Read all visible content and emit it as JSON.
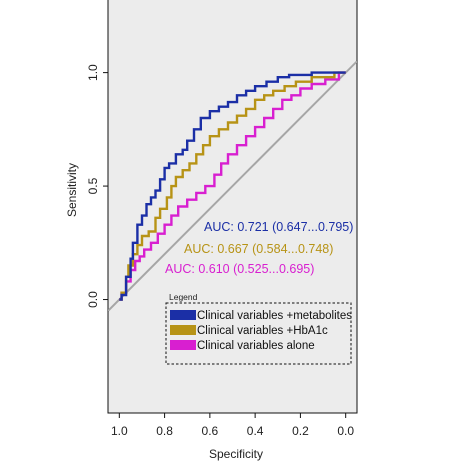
{
  "chart_data": {
    "type": "line",
    "title": "",
    "xlabel": "Specificity",
    "ylabel": "Sensitivity",
    "x_reversed": true,
    "xlim": [
      1.05,
      -0.05
    ],
    "ylim": [
      -0.5,
      1.32
    ],
    "x_ticks": [
      "1.0",
      "0.8",
      "0.6",
      "0.4",
      "0.2",
      "0.0"
    ],
    "x_tick_values": [
      1.0,
      0.8,
      0.6,
      0.4,
      0.2,
      0.0
    ],
    "y_ticks": [
      "0.0",
      "0.5",
      "1.0"
    ],
    "y_tick_values": [
      0.0,
      0.5,
      1.0
    ],
    "background": "#ececec",
    "reference_line": {
      "from": [
        1.05,
        -0.05
      ],
      "to": [
        -0.05,
        1.05
      ],
      "color": "#a6a6a6"
    },
    "legend": {
      "title": "Legend",
      "position": "bottom-right"
    },
    "series": [
      {
        "name": "Clinical variables +metabolites",
        "color": "#1b2fa6",
        "auc_label": "AUC:  0.721  (0.647...0.795)",
        "points": [
          [
            1.0,
            0.0
          ],
          [
            0.99,
            0.0
          ],
          [
            0.99,
            0.02
          ],
          [
            0.97,
            0.02
          ],
          [
            0.97,
            0.1
          ],
          [
            0.95,
            0.1
          ],
          [
            0.95,
            0.18
          ],
          [
            0.94,
            0.18
          ],
          [
            0.94,
            0.25
          ],
          [
            0.92,
            0.25
          ],
          [
            0.92,
            0.33
          ],
          [
            0.9,
            0.33
          ],
          [
            0.9,
            0.37
          ],
          [
            0.88,
            0.37
          ],
          [
            0.88,
            0.42
          ],
          [
            0.86,
            0.42
          ],
          [
            0.86,
            0.45
          ],
          [
            0.84,
            0.45
          ],
          [
            0.84,
            0.48
          ],
          [
            0.82,
            0.48
          ],
          [
            0.82,
            0.53
          ],
          [
            0.8,
            0.53
          ],
          [
            0.8,
            0.58
          ],
          [
            0.78,
            0.58
          ],
          [
            0.78,
            0.6
          ],
          [
            0.75,
            0.6
          ],
          [
            0.75,
            0.64
          ],
          [
            0.72,
            0.64
          ],
          [
            0.72,
            0.66
          ],
          [
            0.7,
            0.66
          ],
          [
            0.7,
            0.7
          ],
          [
            0.67,
            0.7
          ],
          [
            0.67,
            0.75
          ],
          [
            0.64,
            0.75
          ],
          [
            0.64,
            0.8
          ],
          [
            0.6,
            0.8
          ],
          [
            0.6,
            0.83
          ],
          [
            0.56,
            0.83
          ],
          [
            0.56,
            0.85
          ],
          [
            0.52,
            0.85
          ],
          [
            0.52,
            0.87
          ],
          [
            0.48,
            0.87
          ],
          [
            0.48,
            0.9
          ],
          [
            0.44,
            0.9
          ],
          [
            0.44,
            0.92
          ],
          [
            0.4,
            0.92
          ],
          [
            0.4,
            0.94
          ],
          [
            0.35,
            0.94
          ],
          [
            0.35,
            0.96
          ],
          [
            0.3,
            0.96
          ],
          [
            0.3,
            0.98
          ],
          [
            0.25,
            0.98
          ],
          [
            0.25,
            0.99
          ],
          [
            0.15,
            0.99
          ],
          [
            0.15,
            1.0
          ],
          [
            0.0,
            1.0
          ]
        ]
      },
      {
        "name": "Clinical variables +HbA1c",
        "color": "#b79316",
        "auc_label": "AUC:  0.667  (0.584...0.748)",
        "points": [
          [
            1.0,
            0.0
          ],
          [
            0.99,
            0.0
          ],
          [
            0.99,
            0.03
          ],
          [
            0.97,
            0.03
          ],
          [
            0.97,
            0.1
          ],
          [
            0.96,
            0.1
          ],
          [
            0.96,
            0.15
          ],
          [
            0.94,
            0.15
          ],
          [
            0.94,
            0.2
          ],
          [
            0.92,
            0.2
          ],
          [
            0.92,
            0.24
          ],
          [
            0.9,
            0.24
          ],
          [
            0.9,
            0.28
          ],
          [
            0.87,
            0.28
          ],
          [
            0.87,
            0.3
          ],
          [
            0.84,
            0.3
          ],
          [
            0.84,
            0.36
          ],
          [
            0.82,
            0.36
          ],
          [
            0.82,
            0.4
          ],
          [
            0.79,
            0.4
          ],
          [
            0.79,
            0.45
          ],
          [
            0.77,
            0.45
          ],
          [
            0.77,
            0.5
          ],
          [
            0.75,
            0.5
          ],
          [
            0.75,
            0.54
          ],
          [
            0.72,
            0.54
          ],
          [
            0.72,
            0.57
          ],
          [
            0.69,
            0.57
          ],
          [
            0.69,
            0.6
          ],
          [
            0.66,
            0.6
          ],
          [
            0.66,
            0.64
          ],
          [
            0.63,
            0.64
          ],
          [
            0.63,
            0.68
          ],
          [
            0.6,
            0.68
          ],
          [
            0.6,
            0.72
          ],
          [
            0.56,
            0.72
          ],
          [
            0.56,
            0.75
          ],
          [
            0.52,
            0.75
          ],
          [
            0.52,
            0.78
          ],
          [
            0.48,
            0.78
          ],
          [
            0.48,
            0.81
          ],
          [
            0.44,
            0.81
          ],
          [
            0.44,
            0.84
          ],
          [
            0.4,
            0.84
          ],
          [
            0.4,
            0.88
          ],
          [
            0.36,
            0.88
          ],
          [
            0.36,
            0.9
          ],
          [
            0.32,
            0.9
          ],
          [
            0.32,
            0.92
          ],
          [
            0.27,
            0.92
          ],
          [
            0.27,
            0.94
          ],
          [
            0.22,
            0.94
          ],
          [
            0.22,
            0.96
          ],
          [
            0.15,
            0.96
          ],
          [
            0.15,
            0.98
          ],
          [
            0.05,
            0.98
          ],
          [
            0.05,
            1.0
          ],
          [
            0.0,
            1.0
          ]
        ]
      },
      {
        "name": "Clinical variables alone",
        "color": "#d81fd0",
        "auc_label": "AUC:  0.610  (0.525...0.695)",
        "points": [
          [
            1.0,
            0.0
          ],
          [
            0.99,
            0.0
          ],
          [
            0.99,
            0.03
          ],
          [
            0.97,
            0.03
          ],
          [
            0.97,
            0.08
          ],
          [
            0.95,
            0.08
          ],
          [
            0.95,
            0.13
          ],
          [
            0.93,
            0.13
          ],
          [
            0.93,
            0.17
          ],
          [
            0.91,
            0.17
          ],
          [
            0.91,
            0.19
          ],
          [
            0.89,
            0.19
          ],
          [
            0.89,
            0.22
          ],
          [
            0.86,
            0.22
          ],
          [
            0.86,
            0.25
          ],
          [
            0.83,
            0.25
          ],
          [
            0.83,
            0.29
          ],
          [
            0.8,
            0.29
          ],
          [
            0.8,
            0.33
          ],
          [
            0.77,
            0.33
          ],
          [
            0.77,
            0.37
          ],
          [
            0.74,
            0.37
          ],
          [
            0.74,
            0.41
          ],
          [
            0.7,
            0.41
          ],
          [
            0.7,
            0.44
          ],
          [
            0.66,
            0.44
          ],
          [
            0.66,
            0.47
          ],
          [
            0.62,
            0.47
          ],
          [
            0.62,
            0.5
          ],
          [
            0.58,
            0.5
          ],
          [
            0.58,
            0.55
          ],
          [
            0.55,
            0.55
          ],
          [
            0.55,
            0.6
          ],
          [
            0.52,
            0.6
          ],
          [
            0.52,
            0.64
          ],
          [
            0.48,
            0.64
          ],
          [
            0.48,
            0.68
          ],
          [
            0.44,
            0.68
          ],
          [
            0.44,
            0.72
          ],
          [
            0.4,
            0.72
          ],
          [
            0.4,
            0.76
          ],
          [
            0.36,
            0.76
          ],
          [
            0.36,
            0.8
          ],
          [
            0.32,
            0.8
          ],
          [
            0.32,
            0.84
          ],
          [
            0.28,
            0.84
          ],
          [
            0.28,
            0.88
          ],
          [
            0.24,
            0.88
          ],
          [
            0.24,
            0.9
          ],
          [
            0.2,
            0.9
          ],
          [
            0.2,
            0.93
          ],
          [
            0.15,
            0.93
          ],
          [
            0.15,
            0.95
          ],
          [
            0.09,
            0.95
          ],
          [
            0.09,
            0.97
          ],
          [
            0.03,
            0.97
          ],
          [
            0.03,
            1.0
          ],
          [
            0.0,
            1.0
          ]
        ]
      }
    ]
  }
}
